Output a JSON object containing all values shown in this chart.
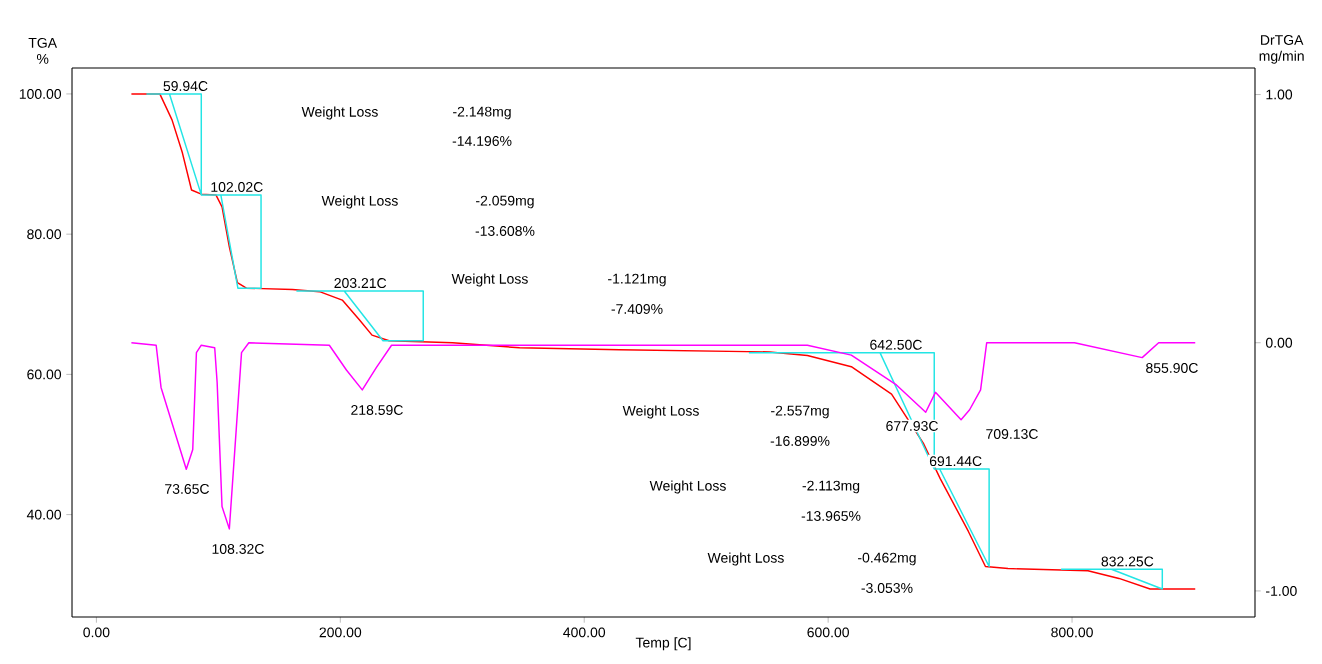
{
  "chart_data": {
    "type": "line",
    "xlabel": "Temp [C]",
    "ylabel": "TGA %",
    "y2label": "DrTGA mg/min",
    "xlim": [
      -20,
      950
    ],
    "ylim": [
      25.4,
      103.7
    ],
    "y2lim": [
      -1.105,
      1.107
    ],
    "xticks": [
      {
        "value": 0,
        "label": "0.00"
      },
      {
        "value": 200,
        "label": "200.00"
      },
      {
        "value": 400,
        "label": "400.00"
      },
      {
        "value": 600,
        "label": "600.00"
      },
      {
        "value": 800,
        "label": "800.00"
      }
    ],
    "yticks": [
      {
        "value": 40,
        "label": "40.00"
      },
      {
        "value": 60,
        "label": "60.00"
      },
      {
        "value": 80,
        "label": "80.00"
      },
      {
        "value": 100,
        "label": "100.00"
      }
    ],
    "y2ticks": [
      {
        "value": -1,
        "label": "-1.00"
      },
      {
        "value": 0,
        "label": "0.00"
      },
      {
        "value": 1,
        "label": "1.00"
      }
    ],
    "grid": false,
    "series": [
      {
        "color": "#ff0000",
        "x": [
          28.7,
          52,
          62,
          70.5,
          78,
          86,
          98,
          103,
          109,
          115.6,
          123,
          160.7,
          183,
          201.6,
          215.6,
          226,
          240,
          292,
          314,
          347,
          429,
          552,
          583,
          619,
          652,
          678,
          692,
          715,
          729,
          747.5,
          791,
          813,
          838.5,
          864,
          901
        ],
        "values": [
          100,
          100,
          96.3,
          91.6,
          86.3,
          85.7,
          85.6,
          83.9,
          78.2,
          73.1,
          72.3,
          72.1,
          71.8,
          70.6,
          67.8,
          65.6,
          64.8,
          64.5,
          null,
          63.8,
          63.5,
          63.2,
          62.7,
          61.1,
          57.2,
          50.2,
          45.1,
          37.6,
          32.6,
          32.3,
          32.1,
          32.0,
          30.9,
          29.4,
          29.4
        ]
      },
      {
        "color": "#ff00ff",
        "axis": "y2",
        "x": [
          28.7,
          49,
          53,
          73.7,
          79,
          82,
          86,
          97,
          99,
          103,
          109,
          114.5,
          119,
          125,
          191,
          205,
          218,
          229.5,
          242,
          583,
          619,
          656,
          680,
          688,
          709,
          716,
          725,
          730,
          802,
          857.5,
          871,
          901
        ],
        "values": [
          0,
          -0.01,
          -0.18,
          -0.51,
          -0.43,
          -0.04,
          -0.01,
          -0.02,
          -0.16,
          -0.66,
          -0.75,
          -0.36,
          -0.04,
          0,
          -0.01,
          -0.11,
          -0.19,
          -0.1,
          -0.01,
          -0.01,
          -0.05,
          -0.17,
          -0.28,
          -0.2,
          -0.31,
          -0.27,
          -0.19,
          0,
          0,
          -0.06,
          0,
          0
        ]
      },
      {
        "color": "#22e5e5",
        "x": [
          41,
          86,
          86,
          59.94
        ],
        "values": [
          100,
          100,
          85.6,
          100
        ]
      },
      {
        "color": "#22e5e5",
        "x": [
          86,
          135,
          135,
          116,
          102.02
        ],
        "values": [
          85.6,
          85.6,
          72.3,
          72.3,
          85.6
        ]
      },
      {
        "color": "#22e5e5",
        "x": [
          164,
          268,
          268,
          235,
          203.21
        ],
        "values": [
          71.9,
          71.9,
          64.8,
          64.8,
          71.9
        ]
      },
      {
        "color": "#22e5e5",
        "x": [
          535,
          687,
          687,
          642.5
        ],
        "values": [
          63.1,
          63.1,
          46.5,
          63.1
        ]
      },
      {
        "color": "#22e5e5",
        "x": [
          687,
          732,
          732,
          691.44
        ],
        "values": [
          46.5,
          46.5,
          32.6,
          46.5
        ]
      },
      {
        "color": "#22e5e5",
        "x": [
          791,
          874,
          874,
          832.25
        ],
        "values": [
          32.2,
          32.2,
          29.4,
          32.2
        ]
      }
    ],
    "annotations": [
      {
        "text": "59.94C",
        "x": 59.94,
        "y": 100
      },
      {
        "text": "102.02C",
        "x": 102.02,
        "y": 85.6
      },
      {
        "text": "203.21C",
        "x": 203.21,
        "y": 71.9
      },
      {
        "text": "642.50C",
        "x": 642.5,
        "y": 63.1
      },
      {
        "text": "691.44C",
        "x": 691.44,
        "y": 46.5
      },
      {
        "text": "832.25C",
        "x": 832.25,
        "y": 32.2
      },
      "73.65C",
      "108.32C",
      "218.59C",
      "677.93C",
      "709.13C",
      "855.90C",
      "Weight Loss",
      "-2.148mg",
      "-14.196%",
      "Weight Loss",
      "-2.059mg",
      "-13.608%",
      "Weight Loss",
      "-1.121mg",
      "-7.409%",
      "Weight Loss",
      "-2.557mg",
      "-16.899%",
      "Weight Loss",
      "-2.113mg",
      "-13.965%",
      "Weight Loss",
      "-0.462mg",
      "-3.053%"
    ]
  }
}
